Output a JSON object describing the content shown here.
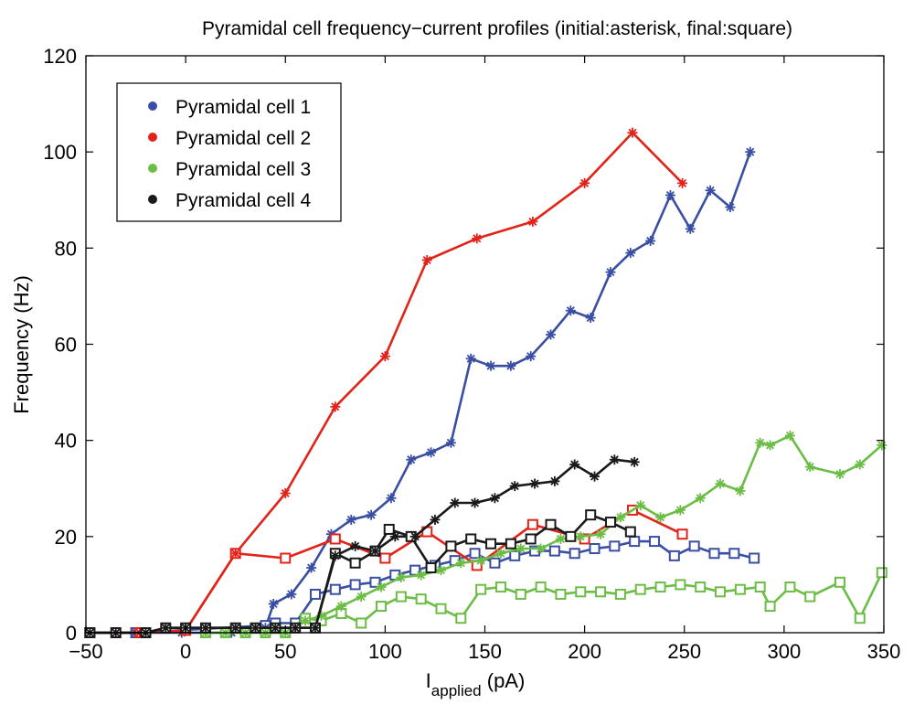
{
  "chart_data": {
    "type": "line",
    "title": "Pyramidal cell frequency−current profiles (initial:asterisk, final:square)",
    "xlabel_main": "I",
    "xlabel_sub": "applied",
    "xlabel_unit": " (pA)",
    "ylabel": "Frequency (Hz)",
    "xlim": [
      -50,
      350
    ],
    "ylim": [
      0,
      120
    ],
    "xticks": [
      -50,
      0,
      50,
      100,
      150,
      200,
      250,
      300,
      350
    ],
    "xtick_labels": [
      "−50",
      "0",
      "50",
      "100",
      "150",
      "200",
      "250",
      "300",
      "350"
    ],
    "yticks": [
      0,
      20,
      40,
      60,
      80,
      100,
      120
    ],
    "ytick_labels": [
      "0",
      "20",
      "40",
      "60",
      "80",
      "100",
      "120"
    ],
    "legend_position": "top-left",
    "series": [
      {
        "name": "Pyramidal cell 1",
        "color": "#3a4fa3",
        "initial": {
          "x": [
            -48,
            -25,
            -2,
            23,
            40,
            44,
            53,
            63,
            73,
            83,
            93,
            103,
            113,
            123,
            133,
            143,
            153,
            163,
            173,
            183,
            193,
            203,
            213,
            223,
            233,
            243,
            253,
            263,
            273,
            283
          ],
          "y": [
            0,
            0,
            0,
            0,
            1,
            6,
            8,
            13.5,
            20.5,
            23.5,
            24.5,
            28,
            36,
            37.5,
            39.5,
            57,
            55.5,
            55.5,
            57.5,
            62,
            67,
            65.5,
            75,
            79,
            81.5,
            91,
            84,
            92,
            88.5,
            100
          ]
        },
        "final": {
          "x": [
            -48,
            -25,
            40,
            45,
            55,
            65,
            75,
            85,
            95,
            105,
            115,
            125,
            135,
            145,
            155,
            165,
            175,
            185,
            195,
            205,
            215,
            225,
            235,
            245,
            255,
            265,
            275,
            285
          ],
          "y": [
            0,
            0,
            1.5,
            2,
            2,
            8,
            9,
            10,
            10.5,
            12,
            13,
            14,
            15,
            16.5,
            14.5,
            16,
            17,
            17,
            16.5,
            17.5,
            18,
            19,
            19,
            16,
            18,
            16.5,
            16.5,
            15.5
          ]
        }
      },
      {
        "name": "Pyramidal cell 2",
        "color": "#e2231a",
        "initial": {
          "x": [
            -48,
            -23,
            0,
            25,
            50,
            75,
            100,
            121,
            146,
            174,
            200,
            224,
            249
          ],
          "y": [
            0,
            0,
            0.5,
            16.5,
            29,
            47,
            57.5,
            77.5,
            82,
            85.5,
            93.5,
            104,
            93.5
          ]
        },
        "final": {
          "x": [
            -48,
            -23,
            0,
            25,
            50,
            75,
            100,
            121,
            146,
            174,
            200,
            224,
            249
          ],
          "y": [
            0,
            0,
            0.5,
            16.5,
            15.5,
            19.5,
            15.5,
            21,
            14,
            22.5,
            19.5,
            25.5,
            20.5
          ]
        }
      },
      {
        "name": "Pyramidal cell 3",
        "color": "#6cbd45",
        "initial": {
          "x": [
            10,
            20,
            30,
            40,
            50,
            60,
            68,
            78,
            88,
            98,
            108,
            118,
            128,
            138,
            148,
            158,
            168,
            178,
            188,
            198,
            208,
            218,
            228,
            238,
            248,
            258,
            268,
            278,
            288,
            293,
            303,
            313,
            328,
            338,
            349
          ],
          "y": [
            0,
            0,
            0,
            0,
            0,
            2.5,
            3.5,
            5.5,
            7.5,
            9.5,
            11.5,
            12,
            13,
            14.5,
            15,
            16.5,
            17.5,
            17.5,
            19.5,
            20,
            20.5,
            24,
            26.5,
            24,
            25.5,
            28,
            31,
            29.5,
            39.5,
            39,
            41,
            34.5,
            33,
            35,
            39
          ]
        },
        "final": {
          "x": [
            10,
            20,
            30,
            40,
            50,
            60,
            68,
            78,
            88,
            98,
            108,
            118,
            128,
            138,
            148,
            158,
            168,
            178,
            188,
            198,
            208,
            218,
            228,
            238,
            248,
            258,
            268,
            278,
            288,
            293,
            303,
            313,
            328,
            338,
            349
          ],
          "y": [
            0,
            0,
            0,
            0,
            0,
            3,
            2.5,
            4,
            2,
            5.5,
            7.5,
            7,
            5,
            3,
            9,
            9.5,
            8,
            9.5,
            8,
            8.5,
            8.5,
            8,
            9,
            9.5,
            10,
            9.5,
            8.5,
            9,
            9.5,
            5.5,
            9.5,
            7.5,
            10.5,
            3,
            12.5
          ]
        }
      },
      {
        "name": "Pyramidal cell 4",
        "color": "#1a1a1a",
        "initial": {
          "x": [
            -48,
            -35,
            -20,
            -10,
            0,
            10,
            25,
            35,
            45,
            55,
            65,
            75,
            85,
            95,
            105,
            115,
            125,
            135,
            145,
            155,
            165,
            175,
            185,
            195,
            205,
            215,
            225
          ],
          "y": [
            0,
            0,
            0,
            1,
            1,
            1,
            1,
            1,
            1,
            1,
            1,
            16,
            18,
            17,
            20,
            20,
            23.5,
            27,
            27,
            28,
            30.5,
            31,
            31.5,
            35,
            32.5,
            36,
            35.5
          ]
        },
        "final": {
          "x": [
            -48,
            -35,
            -20,
            -10,
            0,
            10,
            25,
            35,
            45,
            55,
            65,
            75,
            85,
            95,
            102,
            113,
            123,
            133,
            143,
            153,
            163,
            173,
            183,
            193,
            203,
            213,
            223
          ],
          "y": [
            0,
            0,
            0,
            1,
            1,
            1,
            1,
            1,
            1,
            1,
            1,
            16.5,
            14.5,
            17,
            21.5,
            20,
            13.5,
            18,
            19.5,
            18.5,
            18.5,
            19.5,
            22.5,
            20,
            24.5,
            23,
            21
          ]
        }
      }
    ]
  }
}
